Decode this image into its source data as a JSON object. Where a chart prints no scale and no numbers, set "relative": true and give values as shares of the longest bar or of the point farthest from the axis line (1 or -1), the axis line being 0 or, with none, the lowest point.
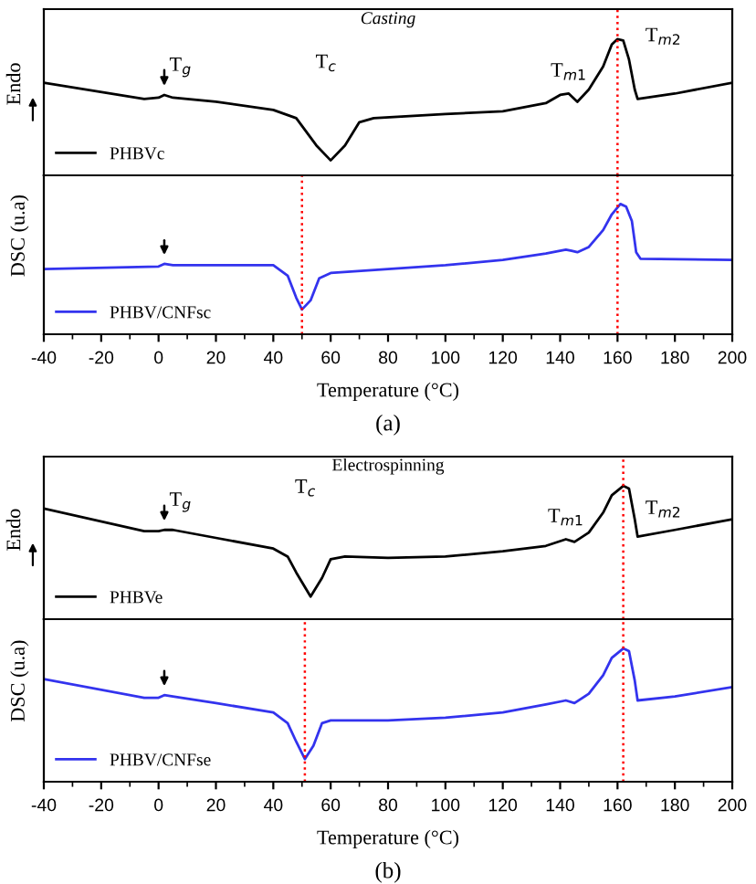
{
  "chart_data": [
    {
      "type": "line",
      "title": "Casting",
      "ylabel": "Endo",
      "relative": true,
      "xlim": [
        -40,
        200
      ],
      "xticks": [
        -40,
        -20,
        0,
        20,
        40,
        60,
        80,
        100,
        120,
        140,
        160,
        180,
        200
      ],
      "tick_labels": false,
      "legend": "bottom left",
      "line_style": "solid",
      "marker": "none",
      "series": [
        {
          "name": "PHBVc",
          "color": "#000000",
          "x": [
            -40,
            -5,
            0,
            2,
            5,
            20,
            40,
            48,
            55,
            60,
            65,
            70,
            75,
            100,
            120,
            135,
            140,
            143,
            146,
            150,
            155,
            158,
            160,
            162,
            164,
            166,
            167,
            180,
            200
          ],
          "values": [
            0.68,
            0.56,
            0.57,
            0.59,
            0.57,
            0.54,
            0.48,
            0.42,
            0.22,
            0.11,
            0.22,
            0.39,
            0.42,
            0.45,
            0.47,
            0.53,
            0.59,
            0.6,
            0.54,
            0.63,
            0.8,
            0.96,
            1,
            0.99,
            0.85,
            0.63,
            0.56,
            0.6,
            0.68
          ]
        }
      ],
      "ref_lines": [
        {
          "axis": "x",
          "value": 160,
          "color": "#ff0000",
          "line_style": "dotted"
        }
      ],
      "annotations": [
        {
          "text": "T$_{g}$",
          "x": 2,
          "y": 0.59
        },
        "T$_{c}$",
        {
          "text": "T$_{m1}$",
          "x": 143,
          "y": 0.6
        },
        "T$_{m2}$"
      ]
    },
    {
      "type": "line",
      "ylabel": "DSC (u.a)",
      "xlabel": "Temperature (°C)",
      "relative": true,
      "xlim": [
        -40,
        200
      ],
      "xticks": [
        -40,
        -20,
        0,
        20,
        40,
        60,
        80,
        100,
        120,
        140,
        160,
        180,
        200
      ],
      "tick_labels": "x",
      "legend": "bottom left",
      "line_style": "solid",
      "marker": "none",
      "series": [
        {
          "name": "PHBV/CNFsc",
          "color": "#3333ee",
          "x": [
            -40,
            0,
            2,
            5,
            40,
            45,
            48,
            50,
            53,
            56,
            60,
            80,
            100,
            120,
            135,
            142,
            144,
            146,
            150,
            155,
            158,
            161,
            163,
            165,
            166.5,
            168,
            200
          ],
          "values": [
            0.5,
            0.52,
            0.54,
            0.53,
            0.53,
            0.45,
            0.28,
            0.19,
            0.26,
            0.43,
            0.47,
            0.5,
            0.53,
            0.57,
            0.62,
            0.65,
            0.64,
            0.63,
            0.67,
            0.8,
            0.92,
            1,
            0.98,
            0.87,
            0.63,
            0.58,
            0.57
          ]
        }
      ],
      "ref_lines": [
        {
          "axis": "x",
          "value": 50,
          "color": "#ff0000",
          "line_style": "dotted"
        },
        {
          "axis": "x",
          "value": 160,
          "color": "#ff0000",
          "line_style": "dotted"
        }
      ],
      "annotations": [
        "(a)"
      ]
    },
    {
      "type": "line",
      "title": "Electrospinning",
      "ylabel": "Endo",
      "relative": true,
      "xlim": [
        -40,
        200
      ],
      "xticks": [
        -40,
        -20,
        0,
        20,
        40,
        60,
        80,
        100,
        120,
        140,
        160,
        180,
        200
      ],
      "tick_labels": false,
      "legend": "bottom left",
      "line_style": "solid",
      "marker": "none",
      "series": [
        {
          "name": "PHBVe",
          "color": "#000000",
          "x": [
            -40,
            -5,
            0,
            2,
            5,
            20,
            40,
            45,
            48,
            53,
            57,
            60,
            65,
            80,
            100,
            120,
            135,
            142,
            145,
            150,
            155,
            158,
            162,
            164,
            166,
            167,
            180,
            200
          ],
          "values": [
            0.83,
            0.66,
            0.66,
            0.67,
            0.67,
            0.61,
            0.53,
            0.47,
            0.35,
            0.17,
            0.31,
            0.45,
            0.47,
            0.46,
            0.47,
            0.51,
            0.55,
            0.6,
            0.58,
            0.65,
            0.8,
            0.93,
            1,
            0.98,
            0.75,
            0.62,
            0.67,
            0.75
          ]
        }
      ],
      "ref_lines": [
        {
          "axis": "x",
          "value": 162,
          "color": "#ff0000",
          "line_style": "dotted"
        }
      ],
      "annotations": [
        {
          "text": "T$_{g}$",
          "x": 2,
          "y": 0.67
        },
        "T$_{c}$",
        {
          "text": "T$_{m1}$",
          "x": 142,
          "y": 0.6
        },
        "T$_{m2}$"
      ]
    },
    {
      "type": "line",
      "ylabel": "DSC (u.a)",
      "xlabel": "Temperature (°C)",
      "relative": true,
      "xlim": [
        -40,
        200
      ],
      "xticks": [
        -40,
        -20,
        0,
        20,
        40,
        60,
        80,
        100,
        120,
        140,
        160,
        180,
        200
      ],
      "tick_labels": "x",
      "legend": "bottom left",
      "line_style": "solid",
      "marker": "none",
      "series": [
        {
          "name": "PHBV/CNFse",
          "color": "#3333ee",
          "x": [
            -40,
            -5,
            0,
            2,
            5,
            20,
            40,
            45,
            48,
            51,
            54,
            57,
            60,
            80,
            100,
            120,
            135,
            142,
            145,
            150,
            155,
            158,
            162,
            164,
            166,
            167,
            180,
            200
          ],
          "values": [
            0.77,
            0.63,
            0.63,
            0.65,
            0.64,
            0.59,
            0.52,
            0.44,
            0.3,
            0.17,
            0.27,
            0.44,
            0.46,
            0.46,
            0.48,
            0.52,
            0.58,
            0.61,
            0.59,
            0.66,
            0.8,
            0.93,
            1,
            0.98,
            0.76,
            0.61,
            0.64,
            0.71
          ]
        }
      ],
      "ref_lines": [
        {
          "axis": "x",
          "value": 51,
          "color": "#ff0000",
          "line_style": "dotted"
        },
        {
          "axis": "x",
          "value": 162,
          "color": "#ff0000",
          "line_style": "dotted"
        }
      ],
      "annotations": [
        "(b)"
      ]
    }
  ]
}
